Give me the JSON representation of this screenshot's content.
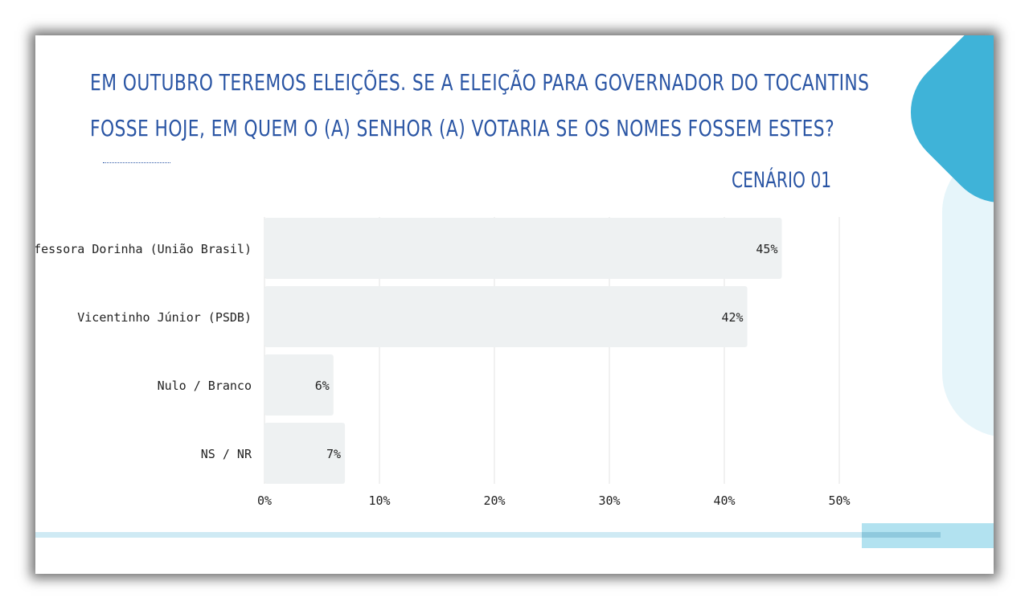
{
  "title": "EM OUTUBRO TEREMOS ELEIÇÕES. SE A ELEIÇÃO PARA GOVERNADOR DO TOCANTINS FOSSE HOJE, EM QUEM O (A) SENHOR (A) VOTARIA SE OS NOMES FOSSEM ESTES?",
  "subtitle": "CENÁRIO 01",
  "colors": {
    "title": "#2a55a4",
    "bar": "#eef1f2",
    "grid": "#e3e3e3",
    "accent": "#3fb3d8",
    "accent_light": "#e6f5fa"
  },
  "chart_data": {
    "type": "bar",
    "orientation": "horizontal",
    "title": "EM OUTUBRO TEREMOS ELEIÇÕES. SE A ELEIÇÃO PARA GOVERNADOR DO TOCANTINS FOSSE HOJE, EM QUEM O (A) SENHOR (A) VOTARIA SE OS NOMES FOSSEM ESTES?",
    "subtitle": "CENÁRIO 01",
    "categories": [
      "Professora Dorinha (União Brasil)",
      "Vicentinho Júnior (PSDB)",
      "Nulo / Branco",
      "NS / NR"
    ],
    "values": [
      45,
      42,
      6,
      7
    ],
    "value_labels": [
      "45%",
      "42%",
      "6%",
      "7%"
    ],
    "xlim": [
      0,
      50
    ],
    "xticks": [
      0,
      10,
      20,
      30,
      40,
      50
    ],
    "xtick_labels": [
      "0%",
      "10%",
      "20%",
      "30%",
      "40%",
      "50%"
    ],
    "xlabel": "",
    "ylabel": "",
    "grid": true,
    "legend": false
  }
}
